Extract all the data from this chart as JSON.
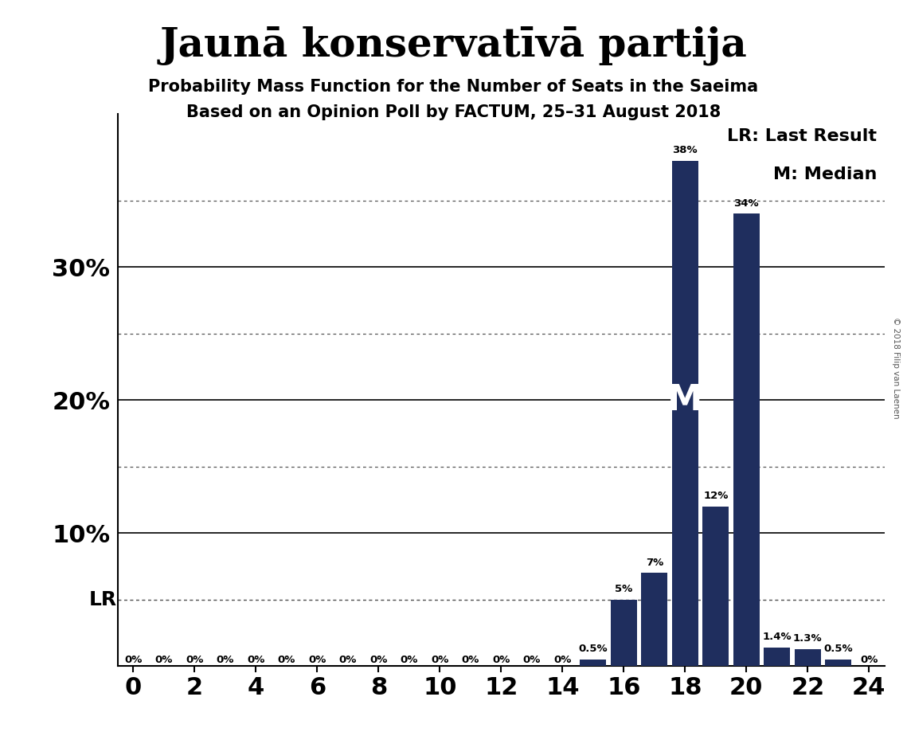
{
  "title": "Jaunā konservatīvā partija",
  "subtitle1": "Probability Mass Function for the Number of Seats in the Saeima",
  "subtitle2": "Based on an Opinion Poll by FACTUM, 25–31 August 2018",
  "copyright": "© 2018 Filip van Laenen",
  "seats": [
    0,
    1,
    2,
    3,
    4,
    5,
    6,
    7,
    8,
    9,
    10,
    11,
    12,
    13,
    14,
    15,
    16,
    17,
    18,
    19,
    20,
    21,
    22,
    23,
    24
  ],
  "probabilities": [
    0.0,
    0.0,
    0.0,
    0.0,
    0.0,
    0.0,
    0.0,
    0.0,
    0.0,
    0.0,
    0.0,
    0.0,
    0.0,
    0.0,
    0.0,
    0.005,
    0.05,
    0.07,
    0.38,
    0.12,
    0.34,
    0.014,
    0.013,
    0.005,
    0.0
  ],
  "bar_color": "#1f2e5e",
  "median": 18,
  "lr_line_y": 0.05,
  "xlim": [
    -0.5,
    24.5
  ],
  "ylim": [
    0,
    0.415
  ],
  "yticks": [
    0.0,
    0.05,
    0.1,
    0.15,
    0.2,
    0.25,
    0.3,
    0.35,
    0.4
  ],
  "ytick_labels_show": [
    0.1,
    0.2,
    0.3
  ],
  "xticks": [
    0,
    2,
    4,
    6,
    8,
    10,
    12,
    14,
    16,
    18,
    20,
    22,
    24
  ],
  "bg_color": "#ffffff",
  "solid_grid_values": [
    0.1,
    0.2,
    0.3
  ],
  "dotted_grid_values": [
    0.05,
    0.15,
    0.25,
    0.35
  ],
  "label_map": {
    "0": "0%",
    "1": "0%",
    "2": "0%",
    "3": "0%",
    "4": "0%",
    "5": "0%",
    "6": "0%",
    "7": "0%",
    "8": "0%",
    "9": "0%",
    "10": "0%",
    "11": "0%",
    "12": "0%",
    "13": "0%",
    "14": "0%",
    "15": "0.5%",
    "16": "5%",
    "17": "7%",
    "18": "38%",
    "19": "12%",
    "20": "34%",
    "21": "1.4%",
    "22": "1.3%",
    "23": "0.5%",
    "24": "0%"
  }
}
